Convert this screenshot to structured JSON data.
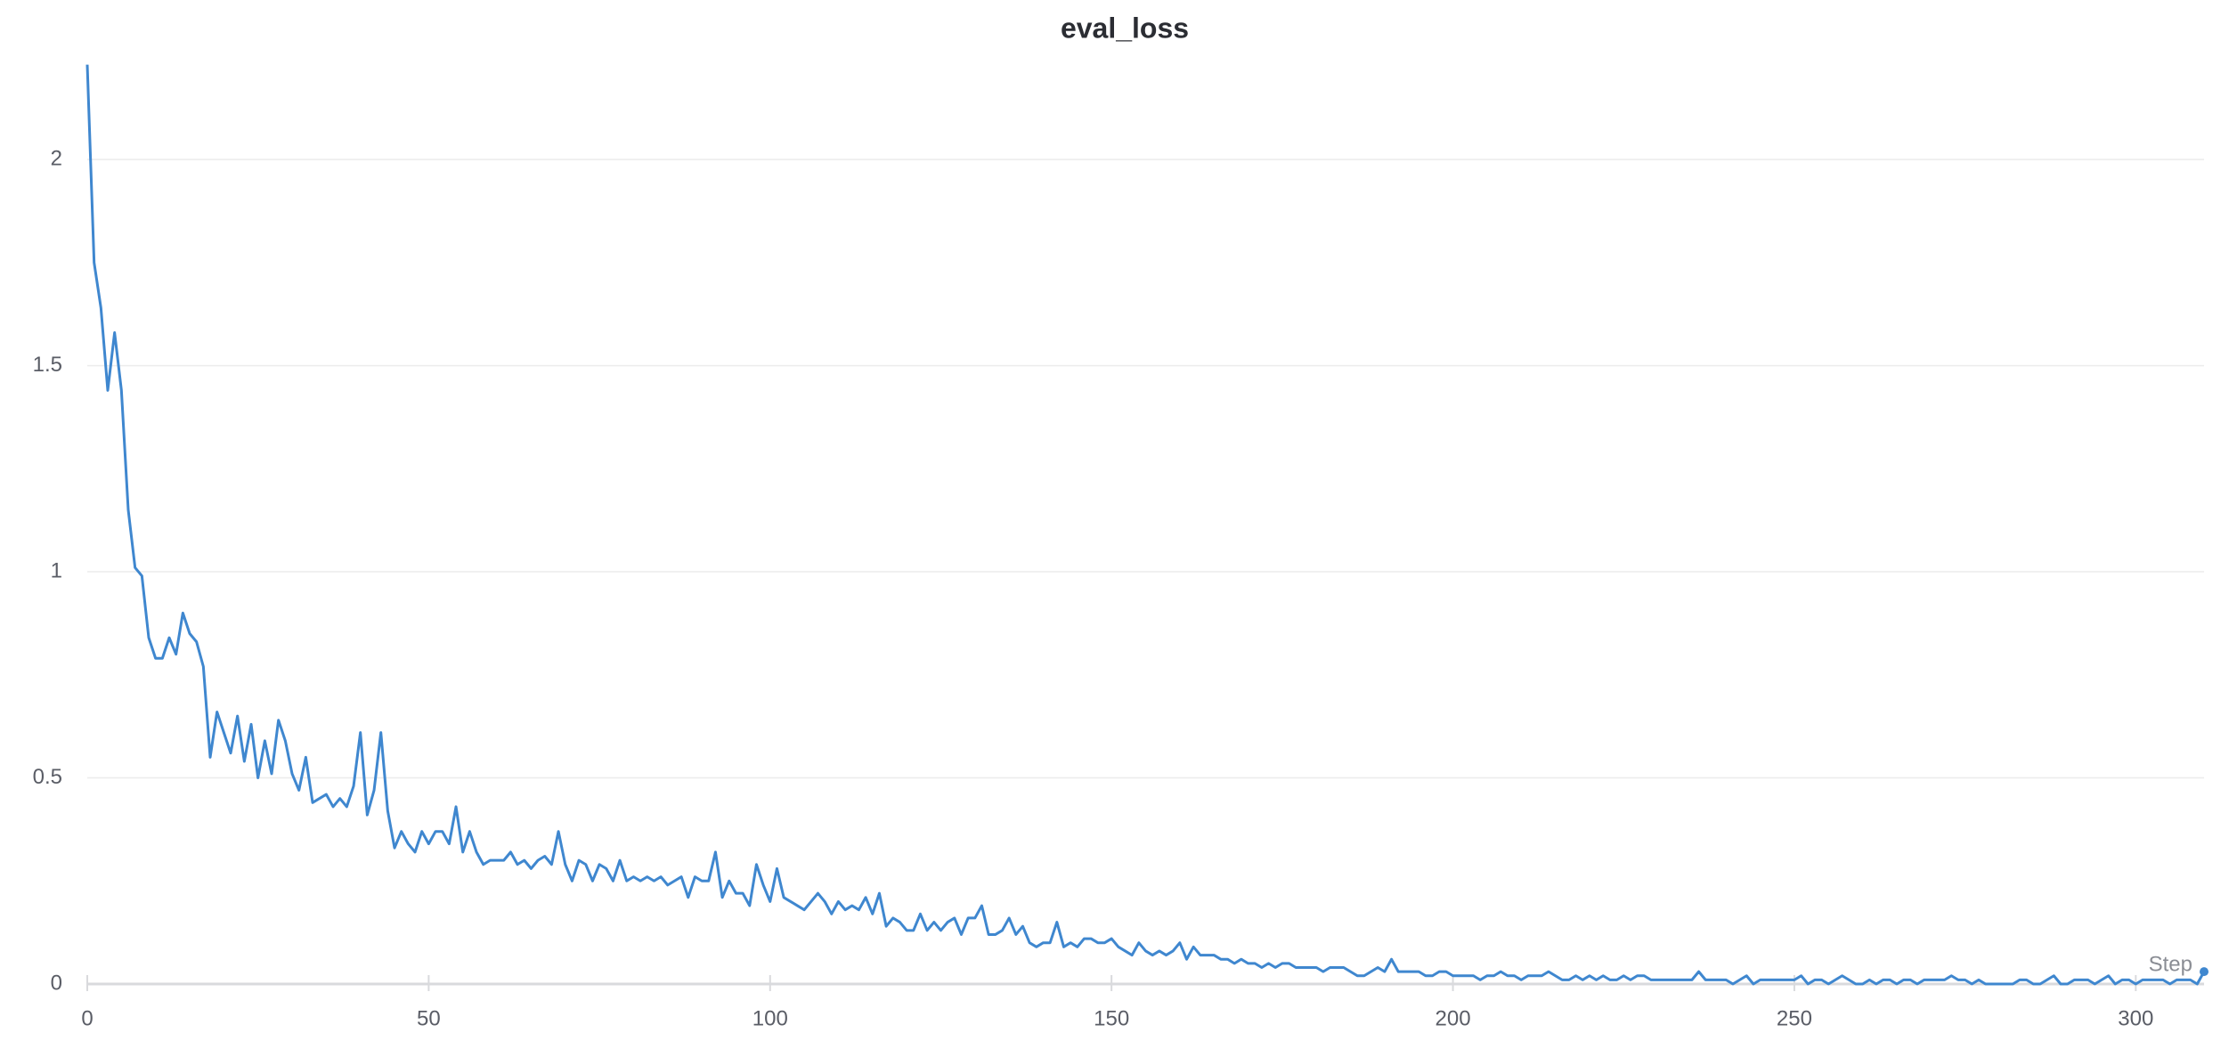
{
  "chart_data": {
    "type": "line",
    "title": "eval_loss",
    "x_label": "Step",
    "x": [
      0,
      1,
      2,
      3,
      4,
      5,
      6,
      7,
      8,
      9,
      10,
      11,
      12,
      13,
      14,
      15,
      16,
      17,
      18,
      19,
      20,
      21,
      22,
      23,
      24,
      25,
      26,
      27,
      28,
      29,
      30,
      31,
      32,
      33,
      34,
      35,
      36,
      37,
      38,
      39,
      40,
      41,
      42,
      43,
      44,
      45,
      46,
      47,
      48,
      49,
      50,
      51,
      52,
      53,
      54,
      55,
      56,
      57,
      58,
      59,
      60,
      61,
      62,
      63,
      64,
      65,
      66,
      67,
      68,
      69,
      70,
      71,
      72,
      73,
      74,
      75,
      76,
      77,
      78,
      79,
      80,
      81,
      82,
      83,
      84,
      85,
      86,
      87,
      88,
      89,
      90,
      91,
      92,
      93,
      94,
      95,
      96,
      97,
      98,
      99,
      100,
      101,
      102,
      103,
      104,
      105,
      106,
      107,
      108,
      109,
      110,
      111,
      112,
      113,
      114,
      115,
      116,
      117,
      118,
      119,
      120,
      121,
      122,
      123,
      124,
      125,
      126,
      127,
      128,
      129,
      130,
      131,
      132,
      133,
      134,
      135,
      136,
      137,
      138,
      139,
      140,
      141,
      142,
      143,
      144,
      145,
      146,
      147,
      148,
      149,
      150,
      151,
      152,
      153,
      154,
      155,
      156,
      157,
      158,
      159,
      160,
      161,
      162,
      163,
      164,
      165,
      166,
      167,
      168,
      169,
      170,
      171,
      172,
      173,
      174,
      175,
      176,
      177,
      178,
      179,
      180,
      181,
      182,
      183,
      184,
      185,
      186,
      187,
      188,
      189,
      190,
      191,
      192,
      193,
      194,
      195,
      196,
      197,
      198,
      199,
      200,
      201,
      202,
      203,
      204,
      205,
      206,
      207,
      208,
      209,
      210,
      211,
      212,
      213,
      214,
      215,
      216,
      217,
      218,
      219,
      220,
      221,
      222,
      223,
      224,
      225,
      226,
      227,
      228,
      229,
      230,
      231,
      232,
      233,
      234,
      235,
      236,
      237,
      238,
      239,
      240,
      241,
      242,
      243,
      244,
      245,
      246,
      247,
      248,
      249,
      250,
      251,
      252,
      253,
      254,
      255,
      256,
      257,
      258,
      259,
      260,
      261,
      262,
      263,
      264,
      265,
      266,
      267,
      268,
      269,
      270,
      271,
      272,
      273,
      274,
      275,
      276,
      277,
      278,
      279,
      280,
      281,
      282,
      283,
      284,
      285,
      286,
      287,
      288,
      289,
      290,
      291,
      292,
      293,
      294,
      295,
      296,
      297,
      298,
      299,
      300,
      301,
      302,
      303,
      304,
      305,
      306,
      307,
      308,
      309,
      310
    ],
    "series": [
      {
        "color": "#3f87cf",
        "values": [
          2.23,
          1.75,
          1.64,
          1.44,
          1.58,
          1.44,
          1.15,
          1.01,
          0.99,
          0.84,
          0.79,
          0.79,
          0.84,
          0.8,
          0.9,
          0.85,
          0.83,
          0.77,
          0.55,
          0.66,
          0.61,
          0.56,
          0.65,
          0.54,
          0.63,
          0.5,
          0.59,
          0.51,
          0.64,
          0.59,
          0.51,
          0.47,
          0.55,
          0.44,
          0.45,
          0.46,
          0.43,
          0.45,
          0.43,
          0.48,
          0.61,
          0.41,
          0.47,
          0.61,
          0.42,
          0.33,
          0.37,
          0.34,
          0.32,
          0.37,
          0.34,
          0.37,
          0.37,
          0.34,
          0.43,
          0.32,
          0.37,
          0.32,
          0.29,
          0.3,
          0.3,
          0.3,
          0.32,
          0.29,
          0.3,
          0.28,
          0.3,
          0.31,
          0.29,
          0.37,
          0.29,
          0.25,
          0.3,
          0.29,
          0.25,
          0.29,
          0.28,
          0.25,
          0.3,
          0.25,
          0.26,
          0.25,
          0.26,
          0.25,
          0.26,
          0.24,
          0.25,
          0.26,
          0.21,
          0.26,
          0.25,
          0.25,
          0.32,
          0.21,
          0.25,
          0.22,
          0.22,
          0.19,
          0.29,
          0.24,
          0.2,
          0.28,
          0.21,
          0.2,
          0.19,
          0.18,
          0.2,
          0.22,
          0.2,
          0.17,
          0.2,
          0.18,
          0.19,
          0.18,
          0.21,
          0.17,
          0.22,
          0.14,
          0.16,
          0.15,
          0.13,
          0.13,
          0.17,
          0.13,
          0.15,
          0.13,
          0.15,
          0.16,
          0.12,
          0.16,
          0.16,
          0.19,
          0.12,
          0.12,
          0.13,
          0.16,
          0.12,
          0.14,
          0.1,
          0.09,
          0.1,
          0.1,
          0.15,
          0.09,
          0.1,
          0.09,
          0.11,
          0.11,
          0.1,
          0.1,
          0.11,
          0.09,
          0.08,
          0.07,
          0.1,
          0.08,
          0.07,
          0.08,
          0.07,
          0.08,
          0.1,
          0.06,
          0.09,
          0.07,
          0.07,
          0.07,
          0.06,
          0.06,
          0.05,
          0.06,
          0.05,
          0.05,
          0.04,
          0.05,
          0.04,
          0.05,
          0.05,
          0.04,
          0.04,
          0.04,
          0.04,
          0.03,
          0.04,
          0.04,
          0.04,
          0.03,
          0.02,
          0.02,
          0.03,
          0.04,
          0.03,
          0.06,
          0.03,
          0.03,
          0.03,
          0.03,
          0.02,
          0.02,
          0.03,
          0.03,
          0.02,
          0.02,
          0.02,
          0.02,
          0.01,
          0.02,
          0.02,
          0.03,
          0.02,
          0.02,
          0.01,
          0.02,
          0.02,
          0.02,
          0.03,
          0.02,
          0.01,
          0.01,
          0.02,
          0.01,
          0.02,
          0.01,
          0.02,
          0.01,
          0.01,
          0.02,
          0.01,
          0.02,
          0.02,
          0.01,
          0.01,
          0.01,
          0.01,
          0.01,
          0.01,
          0.01,
          0.03,
          0.01,
          0.01,
          0.01,
          0.01,
          0.0,
          0.01,
          0.02,
          0.0,
          0.01,
          0.01,
          0.01,
          0.01,
          0.01,
          0.01,
          0.02,
          0.0,
          0.01,
          0.01,
          0.0,
          0.01,
          0.02,
          0.01,
          0.0,
          0.0,
          0.01,
          0.0,
          0.01,
          0.01,
          0.0,
          0.01,
          0.01,
          0.0,
          0.01,
          0.01,
          0.01,
          0.01,
          0.02,
          0.01,
          0.01,
          0.0,
          0.01,
          0.0,
          0.0,
          0.0,
          0.0,
          0.0,
          0.01,
          0.01,
          0.0,
          0.0,
          0.01,
          0.02,
          0.0,
          0.0,
          0.01,
          0.01,
          0.01,
          0.0,
          0.01,
          0.02,
          0.0,
          0.01,
          0.01,
          0.0,
          0.01,
          0.01,
          0.01,
          0.01,
          0.0,
          0.01,
          0.01,
          0.01,
          0.0,
          0.03
        ]
      }
    ],
    "xlim": [
      0,
      310
    ],
    "xticks": [
      0,
      50,
      100,
      150,
      200,
      250,
      300
    ],
    "ylim": [
      0,
      2.24
    ],
    "yticks": [
      0,
      0.5,
      1,
      1.5,
      2
    ],
    "grid": true
  }
}
